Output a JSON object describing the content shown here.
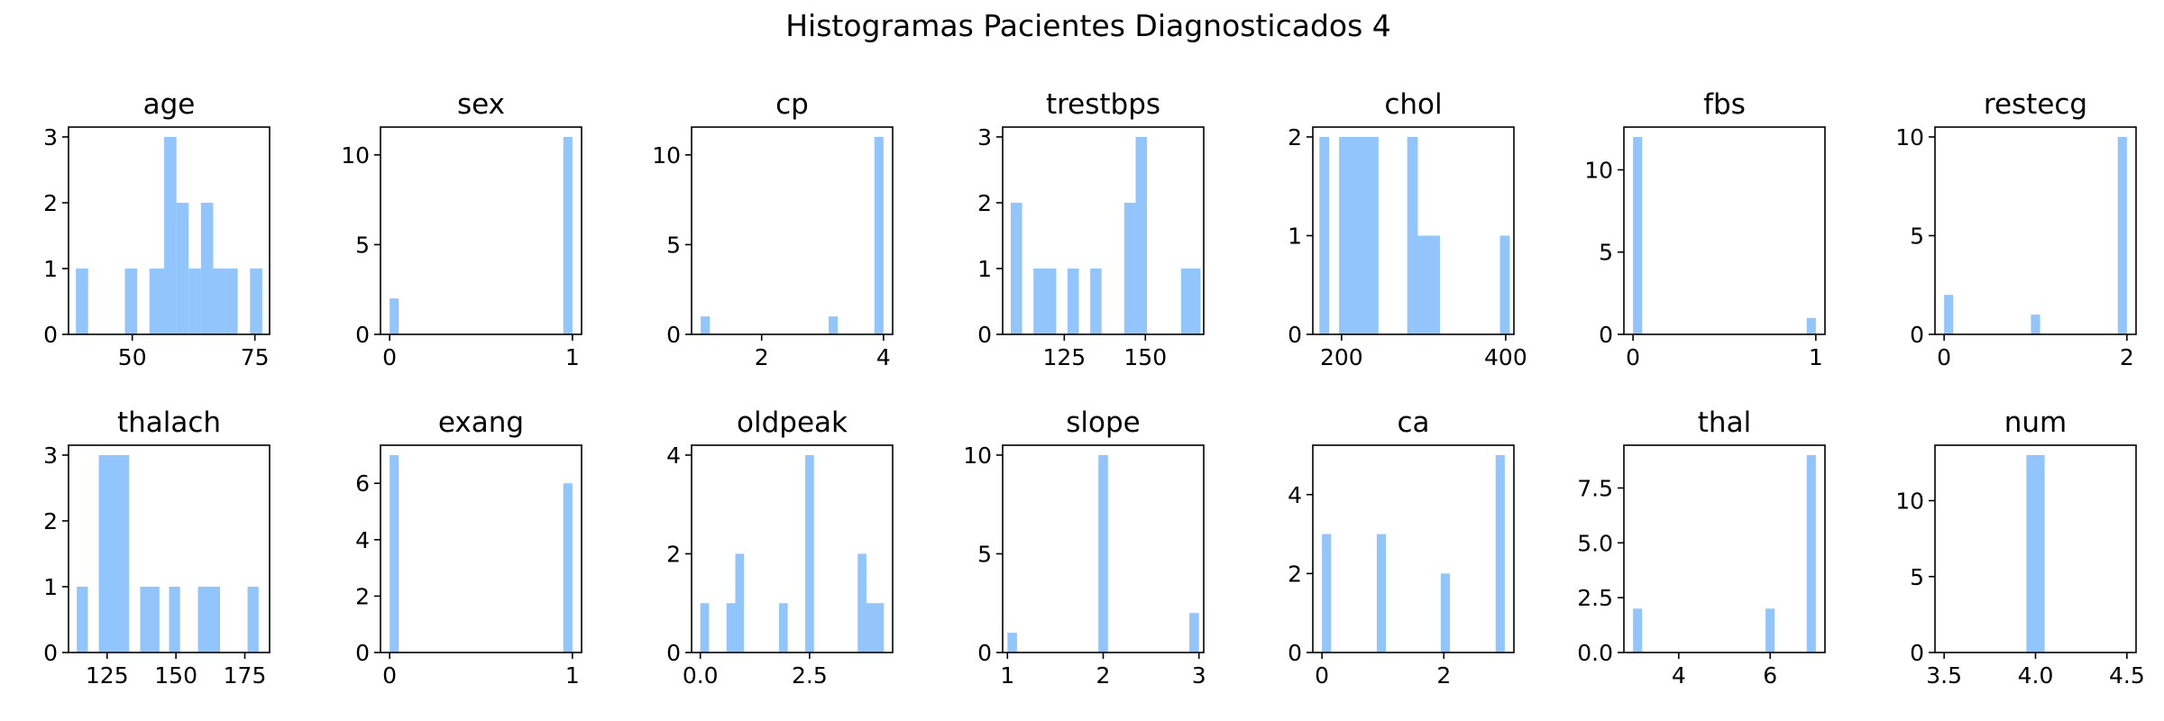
{
  "figure_title": "Histogramas Pacientes Diagnosticados 4",
  "bar_color": "#93c5fd",
  "chart_data": [
    {
      "type": "bar",
      "title": "age",
      "xlim": [
        37,
        78
      ],
      "ylim": [
        0,
        3.15
      ],
      "xticks": [
        50,
        75
      ],
      "xtick_labels": [
        "50",
        "75"
      ],
      "yticks": [
        0,
        1,
        2,
        3
      ],
      "ytick_labels": [
        "0",
        "1",
        "2",
        "3"
      ],
      "bars": [
        {
          "x0": 38.5,
          "x1": 41.0,
          "value": 1
        },
        {
          "x0": 48.5,
          "x1": 51.0,
          "value": 1
        },
        {
          "x0": 53.5,
          "x1": 56.5,
          "value": 1
        },
        {
          "x0": 56.5,
          "x1": 59.0,
          "value": 3
        },
        {
          "x0": 59.0,
          "x1": 61.5,
          "value": 2
        },
        {
          "x0": 61.5,
          "x1": 64.0,
          "value": 1
        },
        {
          "x0": 64.0,
          "x1": 66.5,
          "value": 2
        },
        {
          "x0": 66.5,
          "x1": 69.0,
          "value": 1
        },
        {
          "x0": 69.0,
          "x1": 71.5,
          "value": 1
        },
        {
          "x0": 74.0,
          "x1": 76.5,
          "value": 1
        }
      ]
    },
    {
      "type": "bar",
      "title": "sex",
      "xlim": [
        -0.05,
        1.05
      ],
      "ylim": [
        0,
        11.55
      ],
      "xticks": [
        0,
        1
      ],
      "xtick_labels": [
        "0",
        "1"
      ],
      "yticks": [
        0,
        5,
        10
      ],
      "ytick_labels": [
        "0",
        "5",
        "10"
      ],
      "bars": [
        {
          "x0": 0.0,
          "x1": 0.05,
          "value": 2
        },
        {
          "x0": 0.95,
          "x1": 1.0,
          "value": 11
        }
      ]
    },
    {
      "type": "bar",
      "title": "cp",
      "xlim": [
        0.85,
        4.15
      ],
      "ylim": [
        0,
        11.55
      ],
      "xticks": [
        2,
        4
      ],
      "xtick_labels": [
        "2",
        "4"
      ],
      "yticks": [
        0,
        5,
        10
      ],
      "ytick_labels": [
        "0",
        "5",
        "10"
      ],
      "bars": [
        {
          "x0": 1.0,
          "x1": 1.15,
          "value": 1
        },
        {
          "x0": 3.1,
          "x1": 3.25,
          "value": 1
        },
        {
          "x0": 3.85,
          "x1": 4.0,
          "value": 11
        }
      ]
    },
    {
      "type": "bar",
      "title": "trestbps",
      "xlim": [
        106,
        168
      ],
      "ylim": [
        0,
        3.15
      ],
      "xticks": [
        125,
        150
      ],
      "xtick_labels": [
        "125",
        "150"
      ],
      "yticks": [
        0,
        1,
        2,
        3
      ],
      "ytick_labels": [
        "0",
        "1",
        "2",
        "3"
      ],
      "bars": [
        {
          "x0": 108.5,
          "x1": 112.0,
          "value": 2
        },
        {
          "x0": 115.5,
          "x1": 122.5,
          "value": 1
        },
        {
          "x0": 126.0,
          "x1": 129.5,
          "value": 1
        },
        {
          "x0": 133.0,
          "x1": 136.5,
          "value": 1
        },
        {
          "x0": 143.5,
          "x1": 147.0,
          "value": 2
        },
        {
          "x0": 147.0,
          "x1": 150.5,
          "value": 3
        },
        {
          "x0": 161.0,
          "x1": 167.0,
          "value": 1
        }
      ]
    },
    {
      "type": "bar",
      "title": "chol",
      "xlim": [
        165,
        410
      ],
      "ylim": [
        0,
        2.1
      ],
      "xticks": [
        200,
        400
      ],
      "xtick_labels": [
        "200",
        "400"
      ],
      "yticks": [
        0,
        1,
        2
      ],
      "ytick_labels": [
        "0",
        "1",
        "2"
      ],
      "bars": [
        {
          "x0": 173.0,
          "x1": 185.0,
          "value": 2
        },
        {
          "x0": 197.0,
          "x1": 245.0,
          "value": 2
        },
        {
          "x0": 280.0,
          "x1": 293.0,
          "value": 2
        },
        {
          "x0": 293.0,
          "x1": 320.0,
          "value": 1
        },
        {
          "x0": 393.0,
          "x1": 405.0,
          "value": 1
        }
      ]
    },
    {
      "type": "bar",
      "title": "fbs",
      "xlim": [
        -0.05,
        1.05
      ],
      "ylim": [
        0,
        12.6
      ],
      "xticks": [
        0,
        1
      ],
      "xtick_labels": [
        "0",
        "1"
      ],
      "yticks": [
        0,
        5,
        10
      ],
      "ytick_labels": [
        "0",
        "5",
        "10"
      ],
      "bars": [
        {
          "x0": 0.0,
          "x1": 0.05,
          "value": 12
        },
        {
          "x0": 0.95,
          "x1": 1.0,
          "value": 1
        }
      ]
    },
    {
      "type": "bar",
      "title": "restecg",
      "xlim": [
        -0.1,
        2.1
      ],
      "ylim": [
        0,
        10.5
      ],
      "xticks": [
        0,
        2
      ],
      "xtick_labels": [
        "0",
        "2"
      ],
      "yticks": [
        0,
        5,
        10
      ],
      "ytick_labels": [
        "0",
        "5",
        "10"
      ],
      "bars": [
        {
          "x0": 0.0,
          "x1": 0.1,
          "value": 2
        },
        {
          "x0": 0.95,
          "x1": 1.05,
          "value": 1
        },
        {
          "x0": 1.9,
          "x1": 2.0,
          "value": 10
        }
      ]
    },
    {
      "type": "bar",
      "title": "thalach",
      "xlim": [
        111,
        184
      ],
      "ylim": [
        0,
        3.15
      ],
      "xticks": [
        125,
        150,
        175
      ],
      "xtick_labels": [
        "125",
        "150",
        "175"
      ],
      "yticks": [
        0,
        1,
        2,
        3
      ],
      "ytick_labels": [
        "0",
        "1",
        "2",
        "3"
      ],
      "bars": [
        {
          "x0": 114.0,
          "x1": 118.0,
          "value": 1
        },
        {
          "x0": 122.0,
          "x1": 133.0,
          "value": 3
        },
        {
          "x0": 137.0,
          "x1": 144.0,
          "value": 1
        },
        {
          "x0": 147.5,
          "x1": 151.5,
          "value": 1
        },
        {
          "x0": 158.0,
          "x1": 166.0,
          "value": 1
        },
        {
          "x0": 176.0,
          "x1": 180.0,
          "value": 1
        }
      ]
    },
    {
      "type": "bar",
      "title": "exang",
      "xlim": [
        -0.05,
        1.05
      ],
      "ylim": [
        0,
        7.35
      ],
      "xticks": [
        0,
        1
      ],
      "xtick_labels": [
        "0",
        "1"
      ],
      "yticks": [
        0,
        2,
        4,
        6
      ],
      "ytick_labels": [
        "0",
        "2",
        "4",
        "6"
      ],
      "bars": [
        {
          "x0": 0.0,
          "x1": 0.05,
          "value": 7
        },
        {
          "x0": 0.95,
          "x1": 1.0,
          "value": 6
        }
      ]
    },
    {
      "type": "bar",
      "title": "oldpeak",
      "xlim": [
        -0.2,
        4.4
      ],
      "ylim": [
        0,
        4.2
      ],
      "xticks": [
        0.0,
        2.5
      ],
      "xtick_labels": [
        "0.0",
        "2.5"
      ],
      "yticks": [
        0,
        2,
        4
      ],
      "ytick_labels": [
        "0",
        "2",
        "4"
      ],
      "bars": [
        {
          "x0": 0.0,
          "x1": 0.2,
          "value": 1
        },
        {
          "x0": 0.6,
          "x1": 0.8,
          "value": 1
        },
        {
          "x0": 0.8,
          "x1": 1.0,
          "value": 2
        },
        {
          "x0": 1.8,
          "x1": 2.0,
          "value": 1
        },
        {
          "x0": 2.4,
          "x1": 2.6,
          "value": 4
        },
        {
          "x0": 3.6,
          "x1": 3.8,
          "value": 2
        },
        {
          "x0": 3.8,
          "x1": 4.2,
          "value": 1
        }
      ]
    },
    {
      "type": "bar",
      "title": "slope",
      "xlim": [
        0.95,
        3.05
      ],
      "ylim": [
        0,
        10.5
      ],
      "xticks": [
        1,
        2,
        3
      ],
      "xtick_labels": [
        "1",
        "2",
        "3"
      ],
      "yticks": [
        0,
        5,
        10
      ],
      "ytick_labels": [
        "0",
        "5",
        "10"
      ],
      "bars": [
        {
          "x0": 1.0,
          "x1": 1.1,
          "value": 1
        },
        {
          "x0": 1.95,
          "x1": 2.05,
          "value": 10
        },
        {
          "x0": 2.9,
          "x1": 3.0,
          "value": 2
        }
      ]
    },
    {
      "type": "bar",
      "title": "ca",
      "xlim": [
        -0.15,
        3.15
      ],
      "ylim": [
        0,
        5.25
      ],
      "xticks": [
        0,
        2
      ],
      "xtick_labels": [
        "0",
        "2"
      ],
      "yticks": [
        0,
        2,
        4
      ],
      "ytick_labels": [
        "0",
        "2",
        "4"
      ],
      "bars": [
        {
          "x0": 0.0,
          "x1": 0.15,
          "value": 3
        },
        {
          "x0": 0.9,
          "x1": 1.05,
          "value": 3
        },
        {
          "x0": 1.95,
          "x1": 2.1,
          "value": 2
        },
        {
          "x0": 2.85,
          "x1": 3.0,
          "value": 5
        }
      ]
    },
    {
      "type": "bar",
      "title": "thal",
      "xlim": [
        2.8,
        7.2
      ],
      "ylim": [
        0,
        9.45
      ],
      "xticks": [
        4,
        6
      ],
      "xtick_labels": [
        "4",
        "6"
      ],
      "yticks": [
        0,
        2.5,
        5,
        7.5
      ],
      "ytick_labels": [
        "0.0",
        "2.5",
        "5.0",
        "7.5"
      ],
      "bars": [
        {
          "x0": 3.0,
          "x1": 3.2,
          "value": 2
        },
        {
          "x0": 5.9,
          "x1": 6.1,
          "value": 2
        },
        {
          "x0": 6.8,
          "x1": 7.0,
          "value": 9
        }
      ]
    },
    {
      "type": "bar",
      "title": "num",
      "xlim": [
        3.45,
        4.55
      ],
      "ylim": [
        0,
        13.65
      ],
      "xticks": [
        3.5,
        4.0,
        4.5
      ],
      "xtick_labels": [
        "3.5",
        "4.0",
        "4.5"
      ],
      "yticks": [
        0,
        5,
        10
      ],
      "ytick_labels": [
        "0",
        "5",
        "10"
      ],
      "bars": [
        {
          "x0": 3.95,
          "x1": 4.05,
          "value": 13
        }
      ]
    }
  ]
}
